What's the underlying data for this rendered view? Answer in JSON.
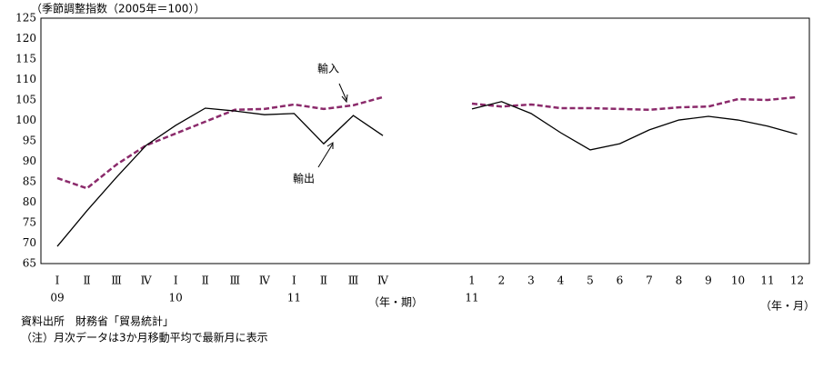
{
  "chart_data": {
    "type": "line",
    "unit_label": "（季節調整指数（2005年＝100））",
    "categories": [
      "Ⅰ",
      "Ⅱ",
      "Ⅲ",
      "Ⅳ",
      "Ⅰ",
      "Ⅱ",
      "Ⅲ",
      "Ⅳ",
      "Ⅰ",
      "Ⅱ",
      "Ⅲ",
      "Ⅳ",
      "1",
      "2",
      "3",
      "4",
      "5",
      "6",
      "7",
      "8",
      "9",
      "10",
      "11",
      "12"
    ],
    "year_labels": [
      "09",
      null,
      null,
      null,
      "10",
      null,
      null,
      null,
      "11",
      null,
      null,
      null,
      "11",
      null,
      null,
      null,
      null,
      null,
      null,
      null,
      null,
      null,
      null,
      null
    ],
    "x_labels": [
      "（年・期）",
      "（年・月）"
    ],
    "ylim": [
      65,
      125
    ],
    "yticks": [
      65,
      70,
      75,
      80,
      85,
      90,
      95,
      100,
      105,
      110,
      115,
      120,
      125
    ],
    "series": [
      {
        "name": "輸入",
        "color": "#8b2a6b",
        "dash": true,
        "values": [
          85.9,
          83.4,
          89.2,
          93.9,
          96.8,
          99.7,
          102.6,
          102.8,
          103.9,
          102.8,
          103.7,
          105.7,
          104.1,
          103.4,
          103.9,
          103.0,
          103.0,
          102.8,
          102.6,
          103.2,
          103.4,
          105.2,
          105.0,
          105.7
        ]
      },
      {
        "name": "輸出",
        "color": "#000000",
        "dash": false,
        "values": [
          69.2,
          77.9,
          86.1,
          93.9,
          98.8,
          103.0,
          102.3,
          101.4,
          101.7,
          94.3,
          101.2,
          96.3,
          102.8,
          104.6,
          101.7,
          97.0,
          92.8,
          94.3,
          97.7,
          100.1,
          101.0,
          100.1,
          98.6,
          96.6
        ]
      }
    ],
    "notes": [
      "資料出所　財務省「貿易統計」",
      "（注）月次データは3か月移動平均で最新月に表示"
    ]
  }
}
